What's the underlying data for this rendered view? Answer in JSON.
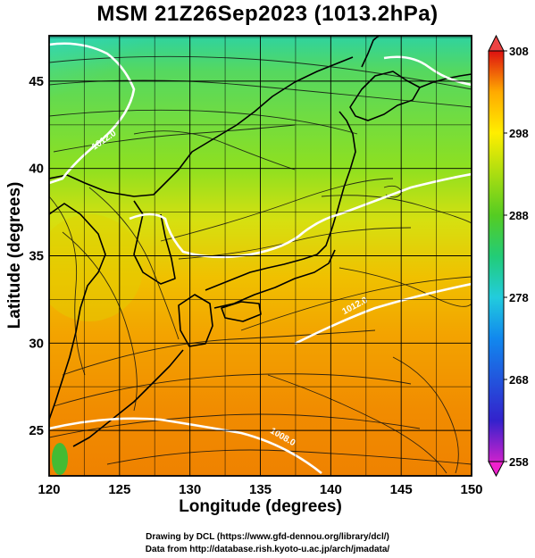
{
  "title": "MSM 21Z26Sep2023 (1013.2hPa)",
  "x_axis": {
    "label": "Longitude (degrees)",
    "range": [
      120,
      150
    ],
    "ticks": [
      {
        "value": 120,
        "label": "120"
      },
      {
        "value": 125,
        "label": "125"
      },
      {
        "value": 130,
        "label": "130"
      },
      {
        "value": 135,
        "label": "135"
      },
      {
        "value": 140,
        "label": "140"
      },
      {
        "value": 145,
        "label": "145"
      },
      {
        "value": 150,
        "label": "150"
      }
    ]
  },
  "y_axis": {
    "label": "Latitude  (degrees)",
    "range": [
      22.4,
      47.6
    ],
    "ticks": [
      {
        "value": 25,
        "label": "25"
      },
      {
        "value": 30,
        "label": "30"
      },
      {
        "value": 35,
        "label": "35"
      },
      {
        "value": 40,
        "label": "40"
      },
      {
        "value": 45,
        "label": "45"
      }
    ]
  },
  "colorbar": {
    "range": [
      258,
      308
    ],
    "ticks": [
      {
        "value": 308,
        "label": "308"
      },
      {
        "value": 298,
        "label": "298"
      },
      {
        "value": 288,
        "label": "288"
      },
      {
        "value": 278,
        "label": "278"
      },
      {
        "value": 268,
        "label": "268"
      },
      {
        "value": 258,
        "label": "258"
      }
    ],
    "colors": [
      "#cc22cc",
      "#3322cc",
      "#1188ee",
      "#22ccdd",
      "#22cc77",
      "#55cc22",
      "#aadd11",
      "#ffee00",
      "#ffaa00",
      "#ee5511",
      "#dd1111"
    ]
  },
  "contour_labels": [
    {
      "text": "1012.0",
      "lon": 124.0,
      "lat": 41.5,
      "rotate": -35
    },
    {
      "text": "1012.0",
      "lon": 141.8,
      "lat": 32.0,
      "rotate": -28
    },
    {
      "text": "1008.0",
      "lon": 136.5,
      "lat": 24.5,
      "rotate": 30
    }
  ],
  "credits": {
    "line1": "Drawing by DCL (https://www.gfd-dennou.org/library/dcl/)",
    "line2": "Data from http://database.rish.kyoto-u.ac.jp/arch/jmadata/"
  }
}
